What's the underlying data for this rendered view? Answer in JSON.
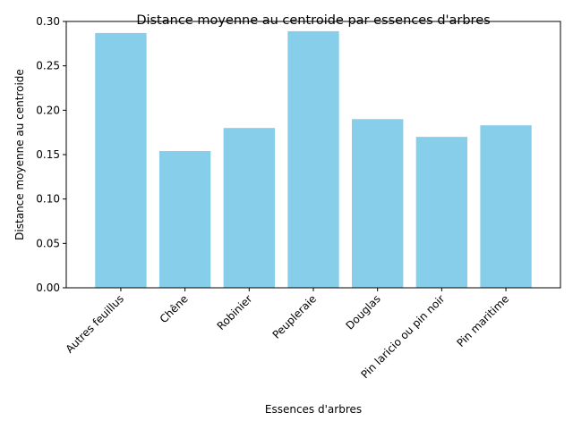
{
  "chart_data": {
    "type": "bar",
    "title": "Distance moyenne au centroide par essences d'arbres",
    "xlabel": "Essences d'arbres",
    "ylabel": "Distance moyenne au centroide",
    "categories": [
      "Autres feuillus",
      "Chêne",
      "Robinier",
      "Peupleraie",
      "Douglas",
      "Pin laricio ou pin noir",
      "Pin maritime"
    ],
    "values": [
      0.287,
      0.154,
      0.18,
      0.289,
      0.19,
      0.17,
      0.183
    ],
    "ylim": [
      0,
      0.3
    ],
    "yticks": [
      0.0,
      0.05,
      0.1,
      0.15,
      0.2,
      0.25,
      0.3
    ],
    "ytick_labels": [
      "0.00",
      "0.05",
      "0.10",
      "0.15",
      "0.20",
      "0.25",
      "0.30"
    ],
    "bar_color": "#87ceeb",
    "grid": false,
    "legend": false
  }
}
